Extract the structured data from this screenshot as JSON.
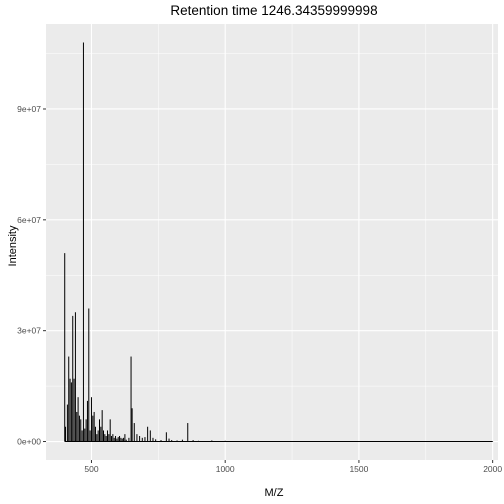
{
  "chart_data": {
    "type": "line",
    "title": "Retention time 1246.34359999998",
    "xlabel": "M/Z",
    "ylabel": "Intensity",
    "xlim": [
      330,
      2020
    ],
    "ylim": [
      -5000000,
      113000000
    ],
    "x_ticks": [
      500,
      1000,
      1500,
      2000
    ],
    "x_tick_labels": [
      "500",
      "1000",
      "1500",
      "2000"
    ],
    "y_ticks": [
      0,
      30000000,
      60000000,
      90000000
    ],
    "y_tick_labels": [
      "0e+00",
      "3e+07",
      "6e+07",
      "9e+07"
    ],
    "grid": true,
    "colors": {
      "panel": "#ebebeb",
      "grid": "#ffffff",
      "line": "#000000"
    },
    "series": [
      {
        "x": [
          400,
          403,
          410,
          415,
          420,
          425,
          430,
          435,
          440,
          445,
          450,
          455,
          460,
          465,
          470,
          475,
          480,
          485,
          490,
          495,
          500,
          505,
          510,
          515,
          520,
          525,
          530,
          535,
          540,
          545,
          550,
          555,
          560,
          565,
          570,
          575,
          580,
          585,
          590,
          595,
          600,
          605,
          610,
          615,
          620,
          625,
          630,
          640,
          648,
          652,
          660,
          670,
          680,
          690,
          700,
          710,
          720,
          730,
          740,
          760,
          780,
          790,
          800,
          820,
          840,
          860,
          880,
          900,
          950,
          1000,
          1100,
          1200,
          1300,
          1400,
          1500,
          1600,
          1700,
          1800,
          1900,
          2000
        ],
        "values": [
          51000000,
          4000000,
          10000000,
          23000000,
          17000000,
          16000000,
          34000000,
          17000000,
          35000000,
          8000000,
          12000000,
          7000000,
          6000000,
          3000000,
          108000000,
          3500000,
          6000000,
          11000000,
          36000000,
          3000000,
          12000000,
          7000000,
          8000000,
          4000000,
          2000000,
          3000000,
          6000000,
          4000000,
          8500000,
          3000000,
          2000000,
          1500000,
          3000000,
          2000000,
          6000000,
          1500000,
          2000000,
          1000000,
          1500000,
          800000,
          1200000,
          1500000,
          1000000,
          800000,
          1000000,
          2000000,
          500000,
          1000000,
          23000000,
          9000000,
          5000000,
          2000000,
          1500000,
          1000000,
          1200000,
          4000000,
          3000000,
          1000000,
          600000,
          400000,
          2500000,
          800000,
          400000,
          300000,
          500000,
          5000000,
          400000,
          200000,
          300000,
          200000,
          150000,
          100000,
          100000,
          80000,
          100000,
          50000,
          80000,
          50000,
          50000,
          100000
        ]
      }
    ]
  }
}
